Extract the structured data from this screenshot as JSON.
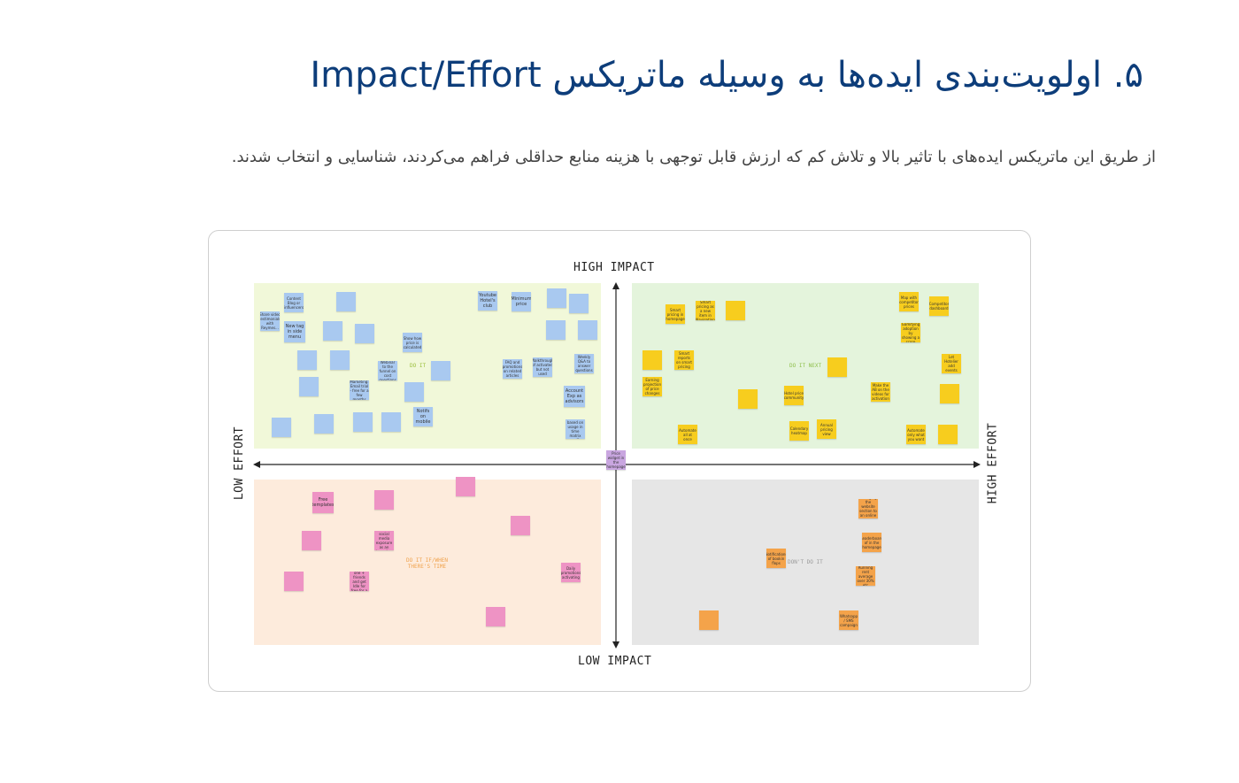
{
  "title": "۵. اولویت‌بندی ایده‌ها به وسیله ماتریکس Impact/Effort",
  "description": "از طریق این ماتریکس ایده‌های با تاثیر بالا و تلاش کم که ارزش قابل توجهی با هزینه منابع حداقلی فراهم می‌کردند، شناسایی و انتخاب شدند.",
  "matrix": {
    "axis_labels": {
      "top": "HIGH IMPACT",
      "bottom": "LOW IMPACT",
      "left": "LOW EFFORT",
      "right": "HIGH EFFORT"
    },
    "quadrant_labels": {
      "top_left": "DO IT",
      "top_right": "DO IT NEXT",
      "bottom_left": "DO IT IF/WHEN\nTHERE'S TIME",
      "bottom_right": "DON'T DO IT"
    },
    "colors": {
      "do_it": "#f1f8d9",
      "do_it_next": "#e4f4dc",
      "if_time": "#fdebdc",
      "dont": "#e6e6e6",
      "note_blue": "#a9c9f0",
      "note_yellow": "#f7cd1e",
      "note_pink": "#ee93c4",
      "note_orange": "#f4a34a",
      "note_purple": "#c9a6e0"
    },
    "center_note": "Price widget in the homepage",
    "notes": {
      "do_it": [
        "Content Blog or influencers",
        "Share video testimonials with Reymes...",
        "New tag in side menu",
        "Youtube Hotel's club",
        "Minimum price",
        "Show how price is calculated",
        "Webinar to the funnel on cost questions",
        "FAQ and promotions on related articles",
        "Weekly Q&A to answer questions",
        "Account Exp as advisors",
        "Marketing: Email trial - free for a few months",
        "Notifs on mobile",
        "Walkthrough of activated but not used",
        "Gift based on usage in time matrix we offer"
      ],
      "do_it_next": [
        "Smart pricing in homepage",
        "Smart pricing as a new item in Navigation",
        "Map with competitor prices",
        "Competitor dashboard",
        "Gamifying adoption by showing a score",
        "Smart reports on smart pricing",
        "Let Hotelier add events",
        "Hotel price community",
        "Make the AB on the videos for activation",
        "Calendary heatmap",
        "Annual pricing view",
        "Automate only what you want",
        "Automate all at once",
        "Earning projection of price changes"
      ],
      "if_time": [
        "Free templates",
        "Offer social media exposure as an incentive",
        "Daily promotions activating",
        "Referral: one + friends and get Idle for free for a year"
      ],
      "dont": [
        "Changing the website section to an online resource",
        "Leaderboard of in the homepage",
        "Notifications of bookin flops",
        "Running rent average over 30% etc",
        "Whatsapp / SMS campaign"
      ]
    }
  }
}
